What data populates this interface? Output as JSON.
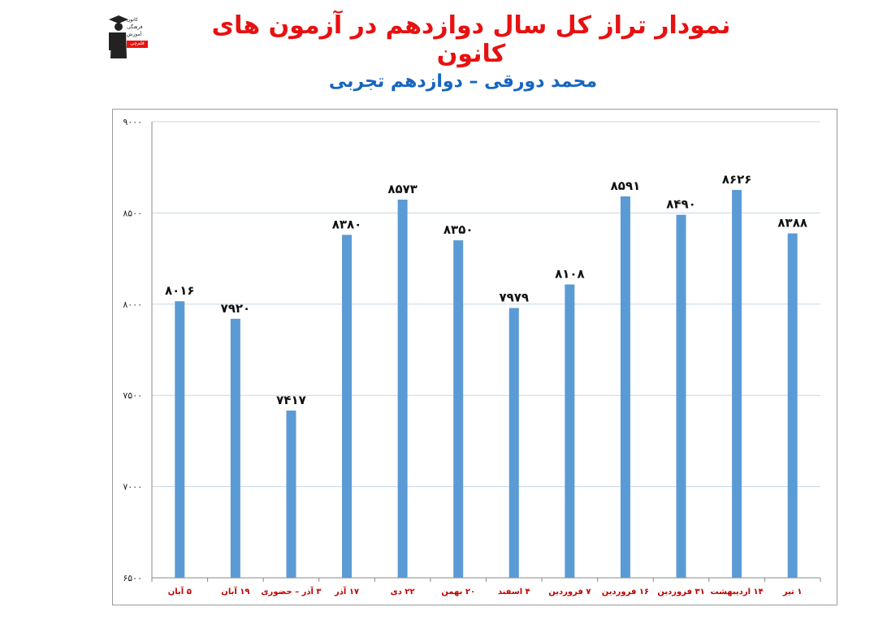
{
  "header": {
    "title": "نمودار تراز کل سال دوازدهم در آزمون های کانون",
    "subtitle": "محمد دورقی – دوازدهم تجربی"
  },
  "logo": {
    "lines": [
      "کانون",
      "فرهنگی",
      "آموزش"
    ],
    "badge": "قلم‌چی"
  },
  "colors": {
    "bar": "#5b9bd5",
    "title": "#e81010",
    "subtitle": "#1565c0",
    "xtick": "#c00000"
  },
  "chart_data": {
    "type": "bar",
    "categories": [
      "۵ آبان",
      "۱۹ آبان",
      "۳ آذر – حضوری",
      "۱۷ آذر",
      "۲۲ دی",
      "۲۰ بهمن",
      "۴ اسفند",
      "۷ فروردین",
      "۱۶ فروردین",
      "۳۱ فروردین",
      "۱۴ اردیبهشت",
      "۱ تیر"
    ],
    "values": [
      8016,
      7920,
      7417,
      8380,
      8573,
      8350,
      7979,
      8108,
      8591,
      8490,
      8626,
      8388
    ],
    "value_labels": [
      "۸۰۱۶",
      "۷۹۲۰",
      "۷۴۱۷",
      "۸۳۸۰",
      "۸۵۷۳",
      "۸۳۵۰",
      "۷۹۷۹",
      "۸۱۰۸",
      "۸۵۹۱",
      "۸۴۹۰",
      "۸۶۲۶",
      "۸۳۸۸"
    ],
    "ylim": [
      6500,
      9000
    ],
    "yticks": [
      6500,
      7000,
      7500,
      8000,
      8500,
      9000
    ],
    "ytick_labels": [
      "۶۵۰۰",
      "۷۰۰۰",
      "۷۵۰۰",
      "۸۰۰۰",
      "۸۵۰۰",
      "۹۰۰۰"
    ],
    "grid": true,
    "legend": "none"
  }
}
